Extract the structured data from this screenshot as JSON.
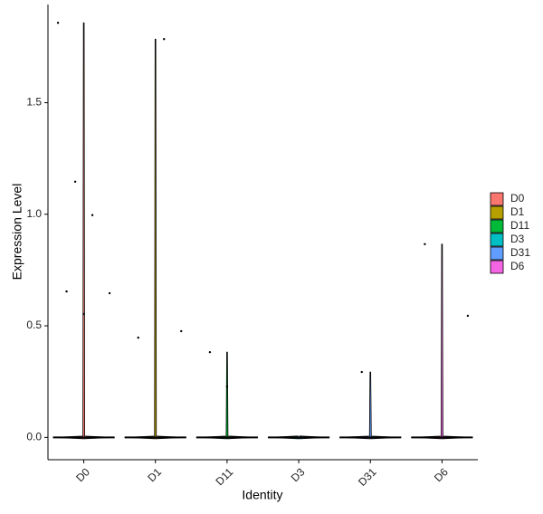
{
  "chart_data": {
    "type": "violin",
    "xlabel": "Identity",
    "ylabel": "Expression Level",
    "categories": [
      "D0",
      "D1",
      "D11",
      "D3",
      "D31",
      "D6"
    ],
    "series": [
      {
        "name": "D0",
        "color": "#F8766D",
        "values": [
          1.858,
          1.146,
          0.996,
          0.646,
          0.654,
          0.553
        ]
      },
      {
        "name": "D1",
        "color": "#B79F00",
        "values": [
          1.785,
          0.476,
          0.447
        ]
      },
      {
        "name": "D11",
        "color": "#00BA38",
        "values": [
          0.382,
          0.228
        ]
      },
      {
        "name": "D3",
        "color": "#00BFC4",
        "values": []
      },
      {
        "name": "D31",
        "color": "#619CFF",
        "values": [
          0.293
        ]
      },
      {
        "name": "D6",
        "color": "#F564E3",
        "values": [
          0.545,
          0.866
        ]
      }
    ],
    "ylim": [
      -0.1,
      1.94
    ],
    "yticks": [
      {
        "value": 0,
        "label": "0.0"
      },
      0.5,
      {
        "value": 1,
        "label": "1.0"
      },
      1.5
    ],
    "legend": "right"
  }
}
